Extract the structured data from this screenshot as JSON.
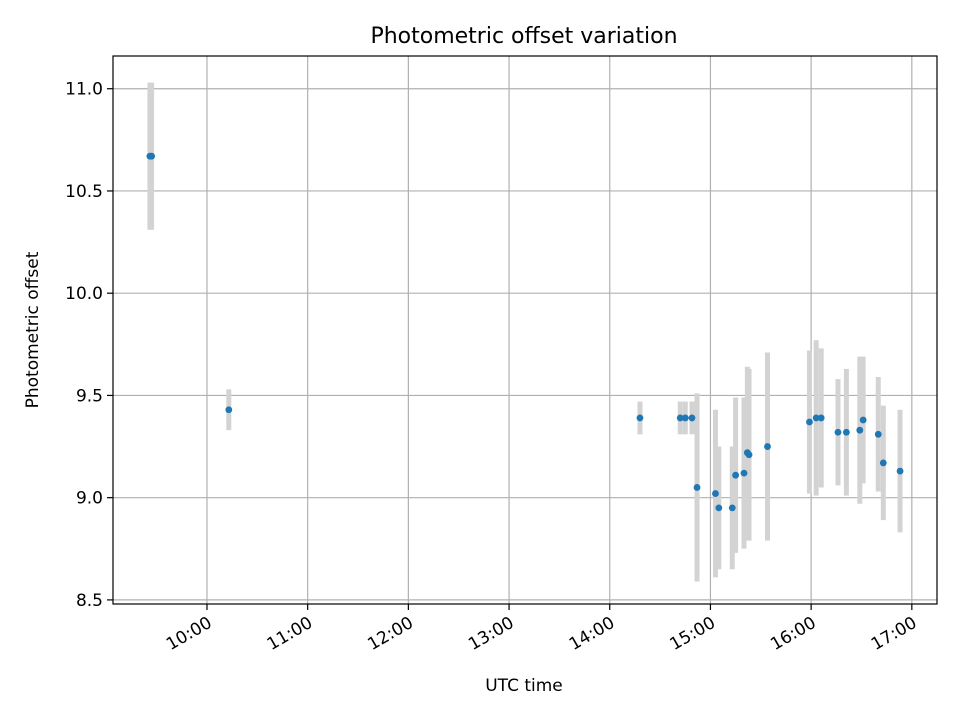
{
  "chart_data": {
    "type": "scatter",
    "title": "Photometric offset variation",
    "xlabel": "UTC time",
    "ylabel": "Photometric offset",
    "xlim": [
      "09:04",
      "17:15"
    ],
    "ylim": [
      8.48,
      11.16
    ],
    "x_ticks": [
      "10:00",
      "11:00",
      "12:00",
      "13:00",
      "14:00",
      "15:00",
      "16:00",
      "17:00"
    ],
    "y_ticks": [
      "8.5",
      "9.0",
      "9.5",
      "10.0",
      "10.5",
      "11.0"
    ],
    "grid": true,
    "colors": {
      "point": "#1f77b4",
      "error_bar": "#d3d3d3",
      "grid": "#b0b0b0"
    },
    "series": [
      {
        "points": [
          {
            "x": "09:26",
            "y": 10.67,
            "err": 0.36
          },
          {
            "x": "09:27",
            "y": 10.67,
            "err": 0.36
          },
          {
            "x": "10:13",
            "y": 9.43,
            "err": 0.1
          },
          {
            "x": "14:18",
            "y": 9.39,
            "err": 0.08
          },
          {
            "x": "14:42",
            "y": 9.39,
            "err": 0.08
          },
          {
            "x": "14:45",
            "y": 9.39,
            "err": 0.08
          },
          {
            "x": "14:49",
            "y": 9.39,
            "err": 0.08
          },
          {
            "x": "14:52",
            "y": 9.05,
            "err": 0.46
          },
          {
            "x": "15:03",
            "y": 9.02,
            "err": 0.41
          },
          {
            "x": "15:05",
            "y": 8.95,
            "err": 0.3
          },
          {
            "x": "15:13",
            "y": 8.95,
            "err": 0.3
          },
          {
            "x": "15:15",
            "y": 9.11,
            "err": 0.38
          },
          {
            "x": "15:20",
            "y": 9.12,
            "err": 0.37
          },
          {
            "x": "15:22",
            "y": 9.22,
            "err": 0.42
          },
          {
            "x": "15:23",
            "y": 9.21,
            "err": 0.42
          },
          {
            "x": "15:34",
            "y": 9.25,
            "err": 0.46
          },
          {
            "x": "15:59",
            "y": 9.37,
            "err": 0.35
          },
          {
            "x": "16:03",
            "y": 9.39,
            "err": 0.38
          },
          {
            "x": "16:06",
            "y": 9.39,
            "err": 0.34
          },
          {
            "x": "16:16",
            "y": 9.32,
            "err": 0.26
          },
          {
            "x": "16:21",
            "y": 9.32,
            "err": 0.31
          },
          {
            "x": "16:29",
            "y": 9.33,
            "err": 0.36
          },
          {
            "x": "16:31",
            "y": 9.38,
            "err": 0.31
          },
          {
            "x": "16:40",
            "y": 9.31,
            "err": 0.28
          },
          {
            "x": "16:43",
            "y": 9.17,
            "err": 0.28
          },
          {
            "x": "16:53",
            "y": 9.13,
            "err": 0.3
          }
        ]
      }
    ]
  }
}
